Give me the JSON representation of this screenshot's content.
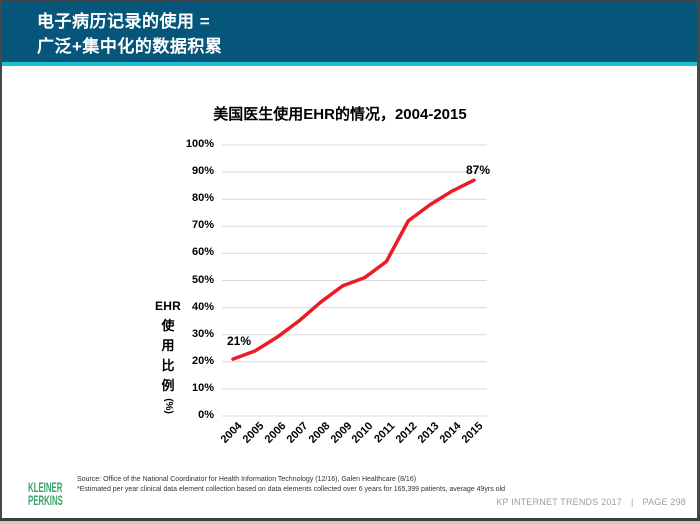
{
  "header": {
    "title_line1": "电子病历记录的使用 =",
    "title_line2": "广泛+集中化的数据积累",
    "bg_color": "#05567a",
    "accent_color": "#1cc0d2"
  },
  "chart_data": {
    "type": "line",
    "title": "美国医生使用EHR的情况，2004-2015",
    "categories": [
      "2004",
      "2005",
      "2006",
      "2007",
      "2008",
      "2009",
      "2010",
      "2011",
      "2012",
      "2013",
      "2014",
      "2015"
    ],
    "values": [
      21,
      24,
      29,
      35,
      42,
      48,
      51,
      57,
      72,
      78,
      83,
      87
    ],
    "series_name": "EHR使用比例",
    "ylabel_chars": [
      "EHR",
      "使",
      "用",
      "比",
      "例",
      "(%)"
    ],
    "y_ticks": [
      "0%",
      "10%",
      "20%",
      "30%",
      "40%",
      "50%",
      "60%",
      "70%",
      "80%",
      "90%",
      "100%"
    ],
    "ylim": [
      0,
      100
    ],
    "grid": true,
    "legend": "none",
    "line_color": "#ec1c24",
    "annotations": [
      {
        "index": 0,
        "text": "21%"
      },
      {
        "index": 11,
        "text": "87%"
      }
    ]
  },
  "footer": {
    "logo_line1": "KLEINER",
    "logo_line2": "PERKINS",
    "logo_color": "#38a569",
    "source_line1": "Source: Office of the National Coordinator for Health Information Technology (12/16), Galen Healthcare (8/16)",
    "source_line2": "*Estimated per year clinical data element collection based on data elements collected over 6 years for 165,399 patients, average 49yrs old",
    "brand_text": "KP INTERNET TRENDS 2017",
    "divider": "|",
    "page_text": "PAGE 298"
  }
}
